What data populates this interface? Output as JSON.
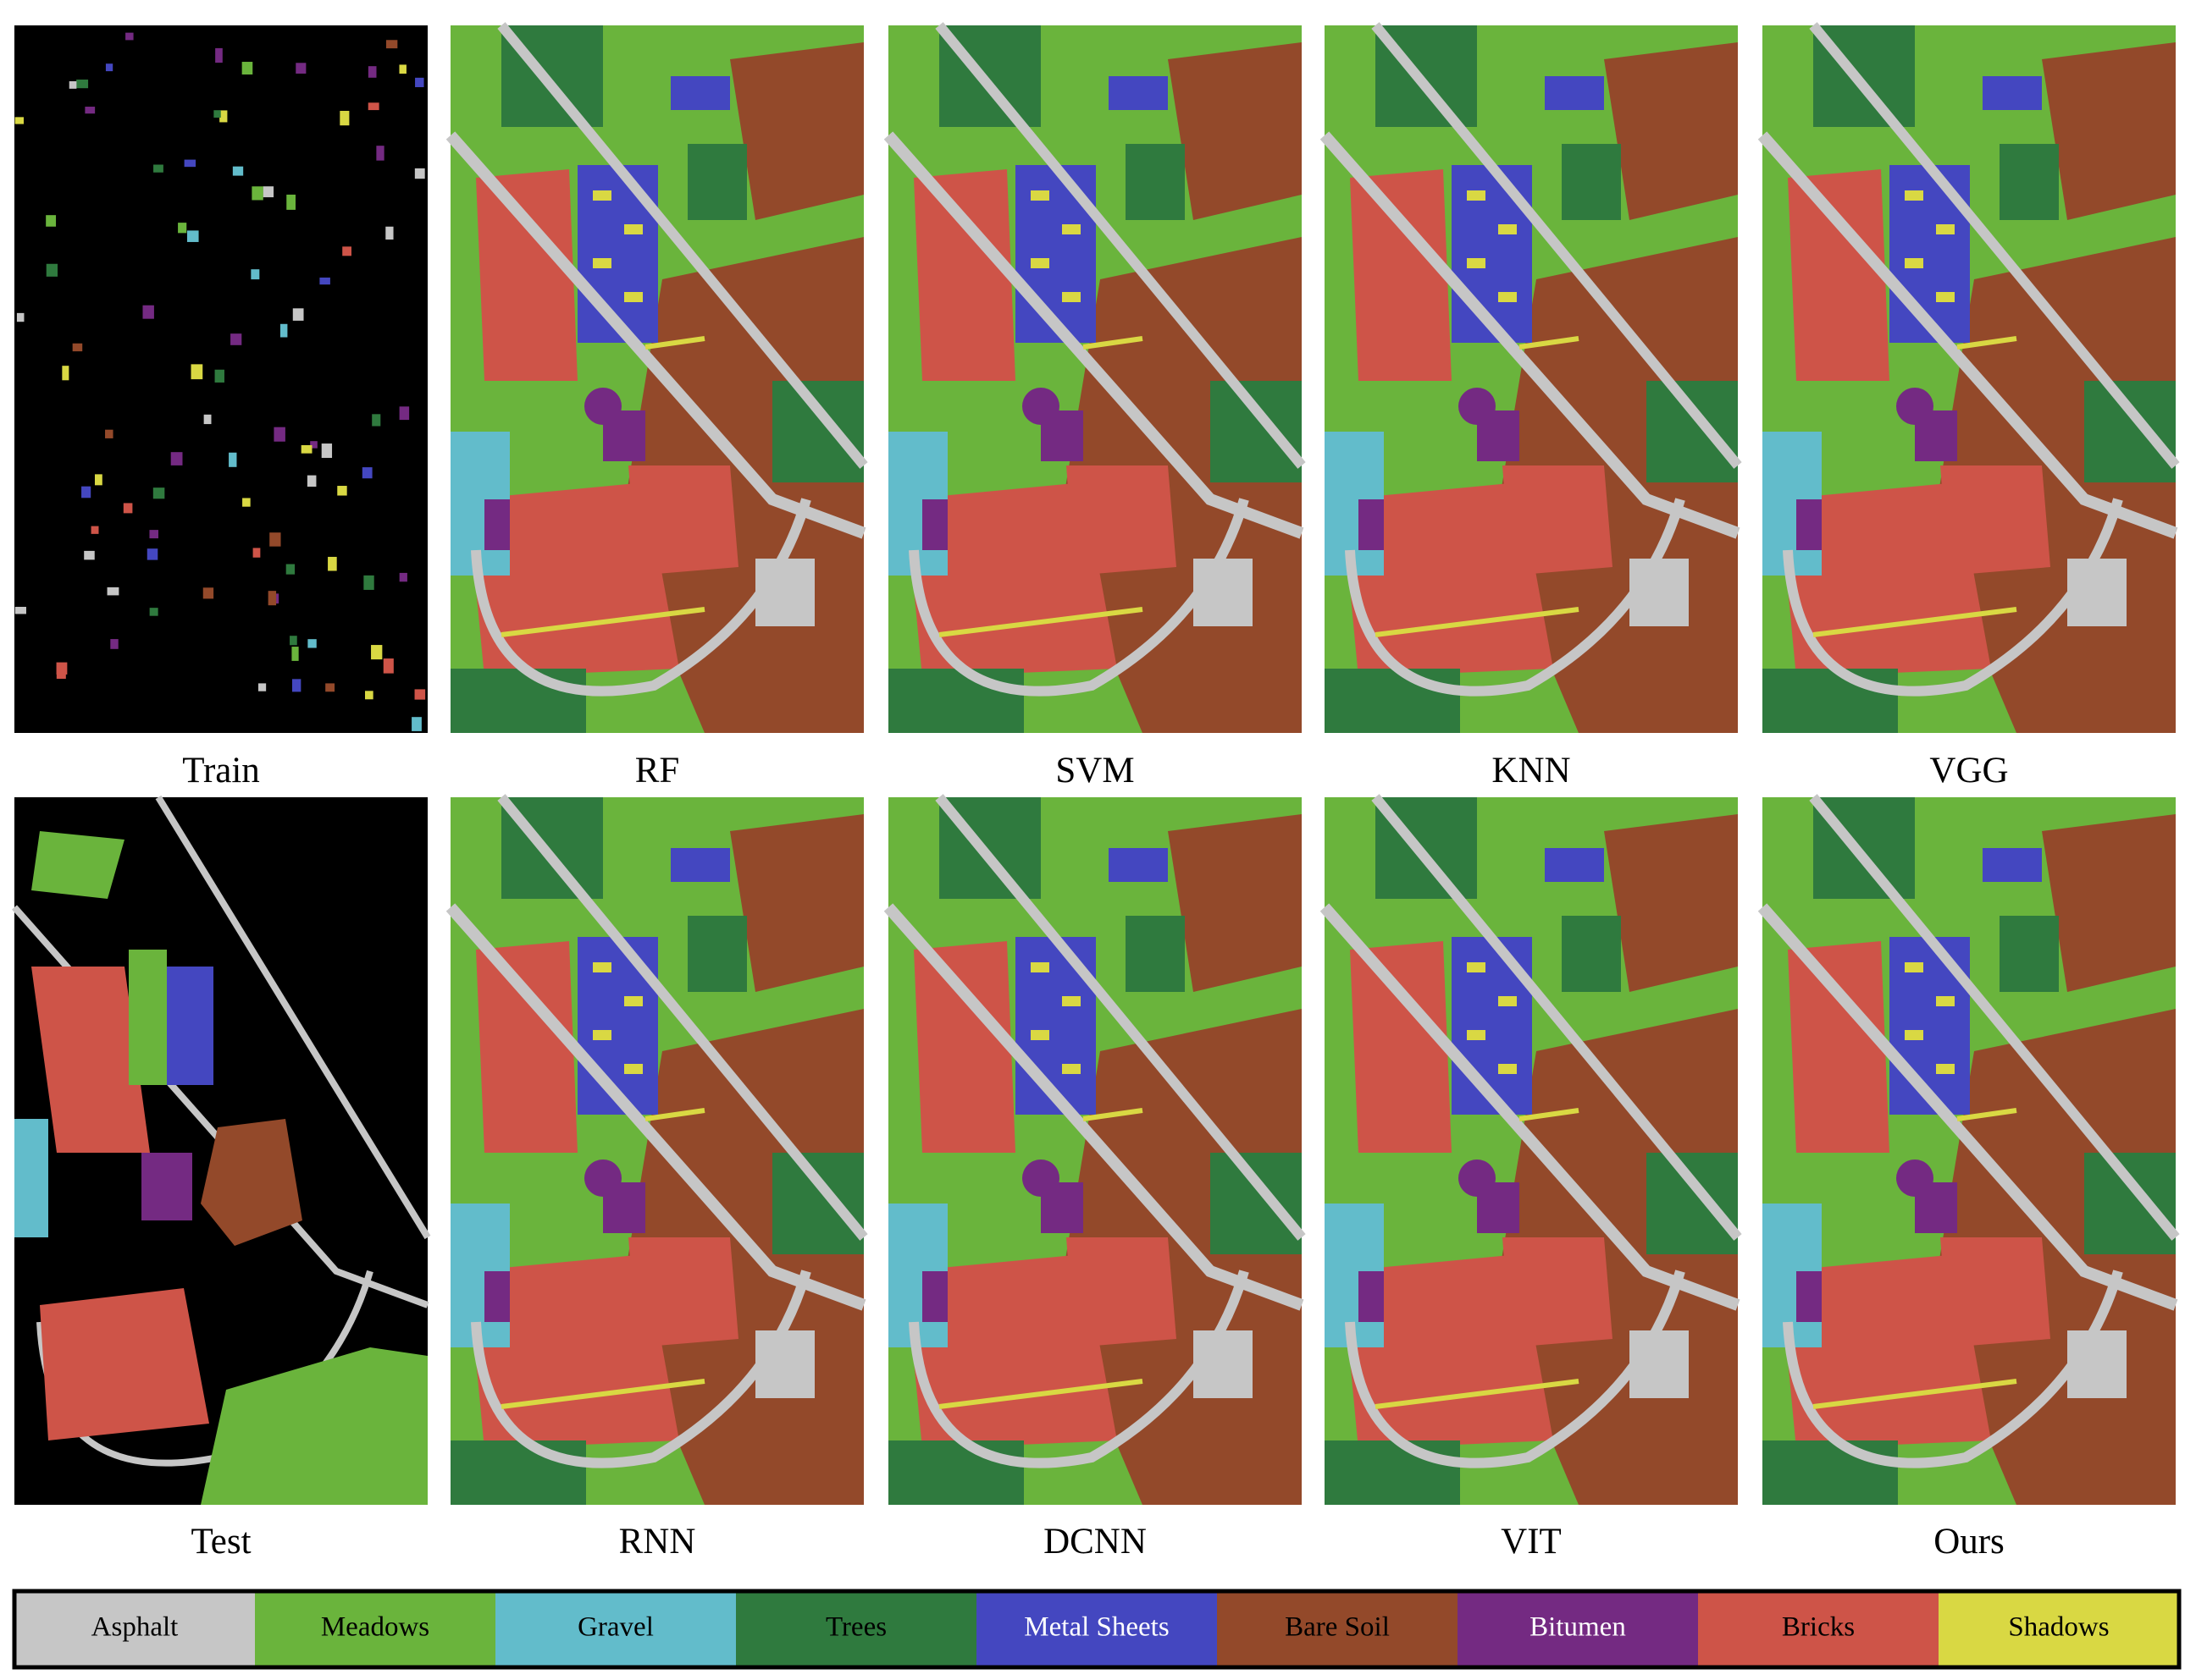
{
  "panels": [
    {
      "label": "Train",
      "kind": "train"
    },
    {
      "label": "RF",
      "kind": "map"
    },
    {
      "label": "SVM",
      "kind": "map"
    },
    {
      "label": "KNN",
      "kind": "map"
    },
    {
      "label": "VGG",
      "kind": "map"
    },
    {
      "label": "Test",
      "kind": "test"
    },
    {
      "label": "RNN",
      "kind": "map"
    },
    {
      "label": "DCNN",
      "kind": "map"
    },
    {
      "label": "VIT",
      "kind": "map"
    },
    {
      "label": "Ours",
      "kind": "map"
    }
  ],
  "legend": [
    {
      "label": "Asphalt",
      "color": "#c6c6c6"
    },
    {
      "label": "Meadows",
      "color": "#6ab43c"
    },
    {
      "label": "Gravel",
      "color": "#62bccb"
    },
    {
      "label": "Trees",
      "color": "#2f7a3e"
    },
    {
      "label": "Metal Sheets",
      "color": "#4447c0"
    },
    {
      "label": "Bare Soil",
      "color": "#93492a"
    },
    {
      "label": "Bitumen",
      "color": "#742a82"
    },
    {
      "label": "Bricks",
      "color": "#ce5448"
    },
    {
      "label": "Shadows",
      "color": "#d9d843"
    }
  ]
}
